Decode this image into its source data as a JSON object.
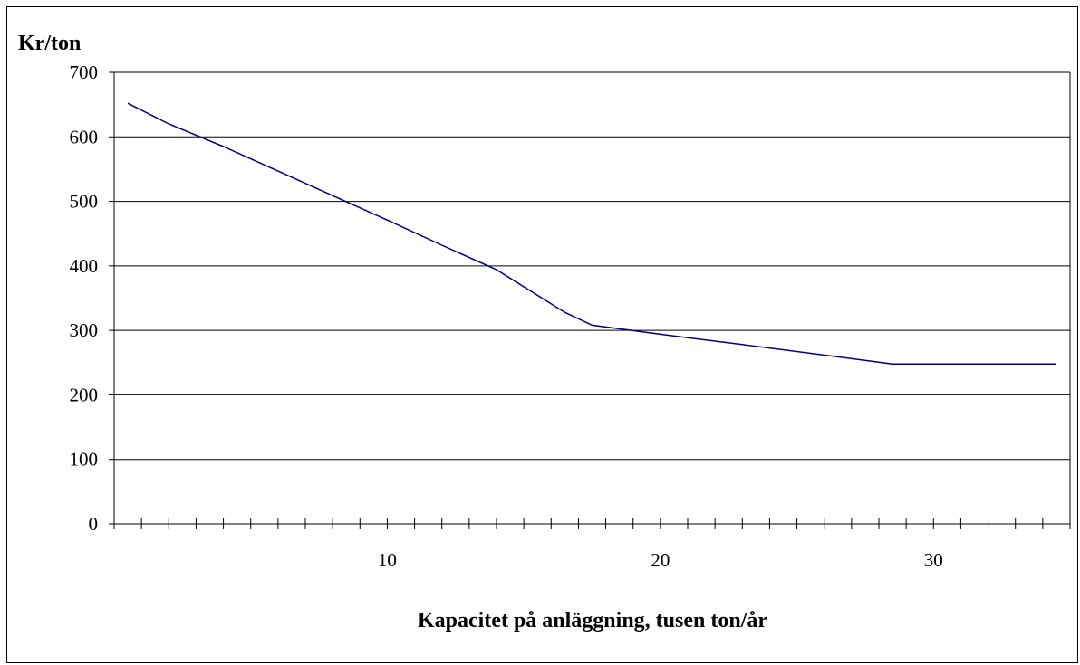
{
  "chart_data": {
    "type": "line",
    "title": "",
    "ylabel": "Kr/ton",
    "xlabel": "Kapacitet på anläggning, tusen ton/år",
    "ylim": [
      0,
      700
    ],
    "yticks": [
      0,
      100,
      200,
      300,
      400,
      500,
      600,
      700
    ],
    "xlim": [
      0,
      35
    ],
    "xticks_labeled": [
      10,
      20,
      30
    ],
    "grid": "horizontal",
    "legend": "none",
    "line_color": "#000080",
    "series": [
      {
        "x": [
          0.5,
          2,
          4,
          6,
          8,
          10,
          12,
          14,
          16.5,
          17.5,
          20,
          23,
          26.5,
          28.5,
          30.5,
          34.5
        ],
        "y": [
          652,
          620,
          585,
          547,
          509,
          471,
          432,
          394,
          328,
          308,
          294,
          278,
          259,
          248,
          248,
          248
        ]
      }
    ]
  }
}
